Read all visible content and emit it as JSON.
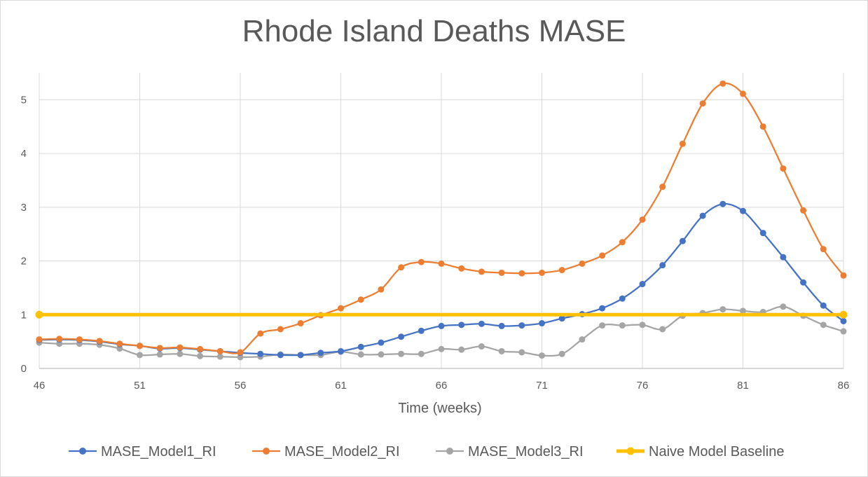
{
  "chart_data": {
    "type": "line",
    "title": "Rhode Island Deaths MASE",
    "xlabel": "Time (weeks)",
    "ylabel": "",
    "xlim": [
      46,
      86
    ],
    "ylim": [
      0,
      5.5
    ],
    "xticks": [
      46,
      51,
      56,
      61,
      66,
      71,
      76,
      81,
      86
    ],
    "yticks": [
      0,
      1,
      2,
      3,
      4,
      5
    ],
    "grid": true,
    "legend_position": "bottom",
    "x": [
      46,
      47,
      48,
      49,
      50,
      51,
      52,
      53,
      54,
      55,
      56,
      57,
      58,
      59,
      60,
      61,
      62,
      63,
      64,
      65,
      66,
      67,
      68,
      69,
      70,
      71,
      72,
      73,
      74,
      75,
      76,
      77,
      78,
      79,
      80,
      81,
      82,
      83,
      84,
      85,
      86
    ],
    "series": [
      {
        "name": "MASE_Model1_RI",
        "color": "#4472C4",
        "values": [
          0.53,
          0.54,
          0.53,
          0.5,
          0.45,
          0.42,
          0.37,
          0.38,
          0.35,
          0.32,
          0.29,
          0.27,
          0.25,
          0.25,
          0.29,
          0.32,
          0.4,
          0.48,
          0.59,
          0.7,
          0.79,
          0.81,
          0.83,
          0.79,
          0.8,
          0.84,
          0.93,
          1.01,
          1.12,
          1.3,
          1.57,
          1.92,
          2.37,
          2.84,
          3.06,
          2.93,
          2.52,
          2.07,
          1.6,
          1.17,
          0.88
        ]
      },
      {
        "name": "MASE_Model2_RI",
        "color": "#ED7D31",
        "values": [
          0.54,
          0.55,
          0.54,
          0.51,
          0.46,
          0.42,
          0.38,
          0.39,
          0.36,
          0.32,
          0.3,
          0.65,
          0.73,
          0.84,
          0.99,
          1.12,
          1.28,
          1.47,
          1.88,
          1.98,
          1.95,
          1.86,
          1.8,
          1.78,
          1.77,
          1.78,
          1.83,
          1.95,
          2.1,
          2.35,
          2.77,
          3.38,
          4.18,
          4.93,
          5.3,
          5.11,
          4.5,
          3.72,
          2.94,
          2.22,
          1.73
        ]
      },
      {
        "name": "MASE_Model3_RI",
        "color": "#A5A5A5",
        "values": [
          0.48,
          0.46,
          0.46,
          0.44,
          0.37,
          0.25,
          0.26,
          0.27,
          0.23,
          0.22,
          0.21,
          0.22,
          0.26,
          0.25,
          0.25,
          0.31,
          0.26,
          0.26,
          0.27,
          0.27,
          0.36,
          0.35,
          0.41,
          0.32,
          0.3,
          0.24,
          0.27,
          0.54,
          0.8,
          0.8,
          0.81,
          0.73,
          0.98,
          1.03,
          1.1,
          1.07,
          1.05,
          1.15,
          0.98,
          0.81,
          0.69
        ]
      },
      {
        "name": "Naive Model Baseline",
        "color": "#FFC000",
        "values": [
          1,
          1,
          1,
          1,
          1,
          1,
          1,
          1,
          1,
          1,
          1,
          1,
          1,
          1,
          1,
          1,
          1,
          1,
          1,
          1,
          1,
          1,
          1,
          1,
          1,
          1,
          1,
          1,
          1,
          1,
          1,
          1,
          1,
          1,
          1,
          1,
          1,
          1,
          1,
          1,
          1
        ]
      }
    ]
  }
}
